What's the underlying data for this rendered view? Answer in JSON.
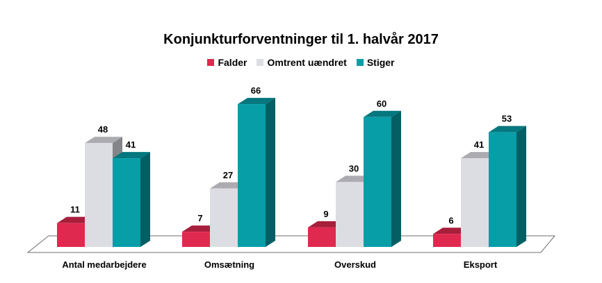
{
  "chart_data": {
    "type": "bar",
    "title": "Konjunkturforventninger til 1. halvår 2017",
    "categories": [
      "Antal medarbejdere",
      "Omsætning",
      "Overskud",
      "Eksport"
    ],
    "series": [
      {
        "name": "Falder",
        "values": [
          11,
          7,
          9,
          6
        ]
      },
      {
        "name": "Omtrent uændret",
        "values": [
          48,
          27,
          30,
          41
        ]
      },
      {
        "name": "Stiger",
        "values": [
          41,
          66,
          60,
          53
        ]
      }
    ],
    "ylim": [
      0,
      70
    ],
    "grid": false,
    "legend_position": "top"
  },
  "colors": {
    "falder": "#e0294e",
    "uaendret": "#dcdde2",
    "stiger": "#079ea8"
  }
}
